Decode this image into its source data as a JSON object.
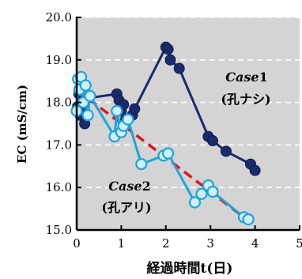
{
  "chart_data": {
    "type": "line",
    "xlabel": "経過時間t(日)",
    "ylabel": "EC (mS/cm)",
    "xlim": [
      0,
      5
    ],
    "ylim": [
      15.0,
      20.0
    ],
    "xticks": [
      "0",
      "1",
      "2",
      "3",
      "4",
      "5"
    ],
    "yticks": [
      "15.0",
      "16.0",
      "17.0",
      "18.0",
      "19.0",
      "20.0"
    ],
    "grid": "horizontal dashed",
    "background": "#d4d4d4",
    "annotations": [
      {
        "italic": "Case",
        "num": "1",
        "sub": "(孔ナシ)"
      },
      {
        "italic": "Case",
        "num": "2",
        "sub": "(孔アリ)"
      }
    ],
    "series": [
      {
        "color": "#1a2a6c",
        "x": [
          0.02,
          0.05,
          0.08,
          0.12,
          0.18,
          0.25,
          0.9,
          0.95,
          1.0,
          1.05,
          1.1,
          1.25,
          1.3,
          2.0,
          2.05,
          2.1,
          2.3,
          2.95,
          3.05,
          3.35,
          3.9,
          4.0
        ],
        "y": [
          17.9,
          18.2,
          17.7,
          18.3,
          17.5,
          18.1,
          18.2,
          18.05,
          17.8,
          17.95,
          17.6,
          17.7,
          17.85,
          19.3,
          19.25,
          19.0,
          18.8,
          17.2,
          17.1,
          16.85,
          16.55,
          16.4
        ]
      },
      {
        "color": "#1fa3d9",
        "x": [
          0.0,
          0.03,
          0.06,
          0.1,
          0.15,
          0.2,
          0.25,
          0.3,
          0.85,
          0.9,
          1.0,
          1.05,
          1.15,
          1.45,
          1.95,
          2.05,
          2.65,
          2.8,
          2.95,
          3.05,
          3.75,
          3.85
        ],
        "y": [
          17.8,
          18.55,
          18.3,
          18.6,
          18.0,
          18.4,
          17.7,
          18.15,
          17.2,
          17.8,
          17.3,
          17.45,
          17.6,
          16.55,
          16.75,
          16.8,
          15.65,
          15.85,
          16.05,
          15.9,
          15.3,
          15.25
        ]
      }
    ],
    "trendline": {
      "color": "#e8131b",
      "x": [
        0.0,
        4.0
      ],
      "y": [
        18.3,
        15.1
      ]
    }
  }
}
